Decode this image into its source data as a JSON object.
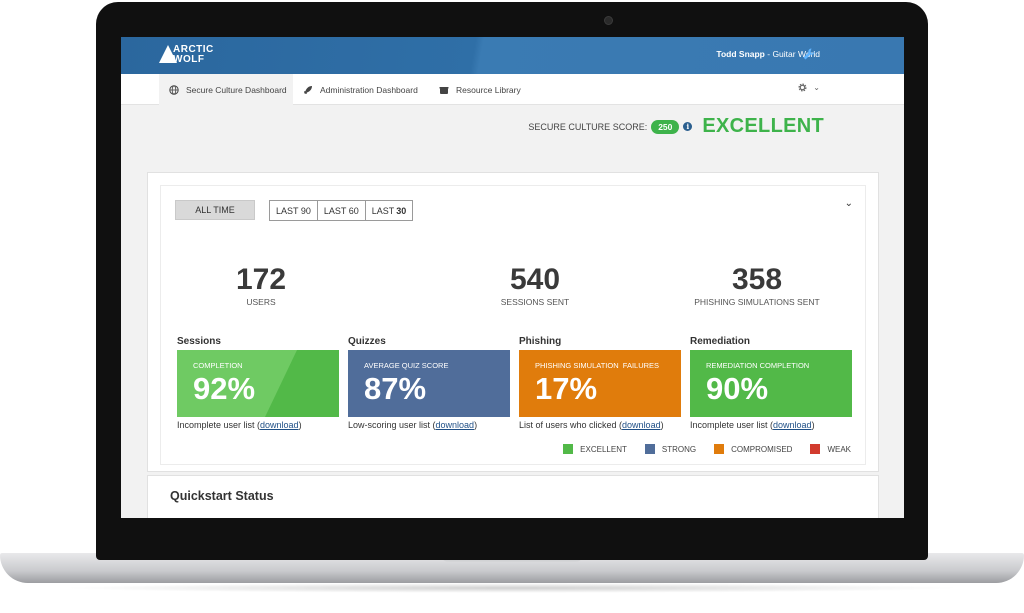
{
  "app": {
    "logo_text_1": "ARCTIC",
    "logo_text_2": "WOLF",
    "user_name": "Todd Snapp",
    "org_name": " - Guitar World"
  },
  "nav": {
    "tabs": [
      {
        "label": "Secure Culture Dashboard",
        "icon": "globe-icon",
        "active": true
      },
      {
        "label": "Administration Dashboard",
        "icon": "rocket-icon",
        "active": false
      },
      {
        "label": "Resource Library",
        "icon": "basket-icon",
        "active": false
      }
    ],
    "settings_icon": "gear-icon"
  },
  "score": {
    "label": "SECURE CULTURE SCORE:",
    "value": "250",
    "rating": "EXCELLENT"
  },
  "filters": {
    "all_time": "ALL TIME",
    "last_90": "LAST 90",
    "last_60": "LAST 60",
    "last_30_prefix": "LAST",
    "last_30_num": "30"
  },
  "stats": [
    {
      "value": "172",
      "label": "USERS"
    },
    {
      "value": "540",
      "label": "SESSIONS SENT"
    },
    {
      "value": "358",
      "label": "PHISHING SIMULATIONS SENT"
    }
  ],
  "cards": [
    {
      "title": "Sessions",
      "label": "COMPLETION",
      "value": "92%",
      "note": "Incomplete user list (",
      "link": "download",
      "note_end": ")",
      "color": "#5dbf4f"
    },
    {
      "title": "Quizzes",
      "label": "AVERAGE QUIZ SCORE",
      "value": "87%",
      "note": "Low-scoring user list (",
      "link": "download",
      "note_end": ")",
      "color": "#506d9a"
    },
    {
      "title": "Phishing",
      "label": "PHISHING SIMULATION  FAILURES",
      "value": "17%",
      "note": "List of users who clicked (",
      "link": "download",
      "note_end": ")",
      "color": "#e07c0c"
    },
    {
      "title": "Remediation",
      "label": "REMEDIATION COMPLETION",
      "value": "90%",
      "note": "Incomplete user list (",
      "link": "download",
      "note_end": ")",
      "color": "#52b948"
    }
  ],
  "legend": [
    {
      "label": "EXCELLENT",
      "color": "#52b948"
    },
    {
      "label": "STRONG",
      "color": "#506d9a"
    },
    {
      "label": "COMPROMISED",
      "color": "#e07c0c"
    },
    {
      "label": "WEAK",
      "color": "#d23b2e"
    }
  ],
  "quickstart": {
    "title_1": "Quickstart",
    "title_2": "Status"
  }
}
